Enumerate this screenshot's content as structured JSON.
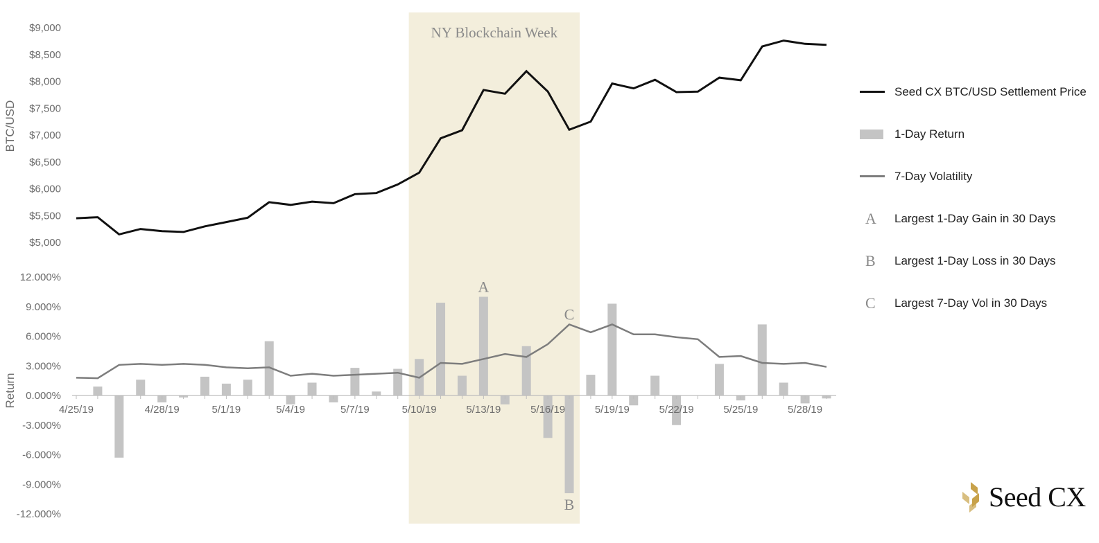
{
  "chart_data": {
    "type": "combo",
    "highlight": {
      "label": "NY Blockchain Week",
      "from_date": "5/10/19",
      "to_date": "5/17/19",
      "color": "#f3eedc"
    },
    "x": [
      "4/25/19",
      "4/25/19",
      "4/26/19",
      "4/27/19",
      "4/28/19",
      "4/29/19",
      "4/30/19",
      "5/1/19",
      "5/2/19",
      "5/3/19",
      "5/4/19",
      "5/5/19",
      "5/6/19",
      "5/7/19",
      "5/8/19",
      "5/9/19",
      "5/10/19",
      "5/11/19",
      "5/12/19",
      "5/13/19",
      "5/14/19",
      "5/15/19",
      "5/16/19",
      "5/17/19",
      "5/18/19",
      "5/19/19",
      "5/20/19",
      "5/21/19",
      "5/22/19",
      "5/23/19",
      "5/24/19",
      "5/25/19",
      "5/26/19",
      "5/27/19",
      "5/28/19",
      "5/29/19"
    ],
    "x_tick_labels": [
      "4/25/19",
      "4/28/19",
      "5/1/19",
      "5/4/19",
      "5/7/19",
      "5/10/19",
      "5/13/19",
      "5/16/19",
      "5/19/19",
      "5/22/19",
      "5/25/19",
      "5/28/19"
    ],
    "top_panel": {
      "ylabel": "BTC/USD",
      "ylim": [
        5000,
        9000
      ],
      "yticks": [
        "$5,000",
        "$5,500",
        "$6,000",
        "$6,500",
        "$7,000",
        "$7,500",
        "$8,000",
        "$8,500",
        "$9,000"
      ],
      "series": [
        {
          "name": "Seed CX BTC/USD Settlement Price",
          "color": "#111111",
          "values": [
            5450,
            5470,
            5150,
            5250,
            5210,
            5195,
            5300,
            5380,
            5460,
            5750,
            5700,
            5760,
            5730,
            5900,
            5920,
            6080,
            6300,
            6940,
            7090,
            7840,
            7770,
            8190,
            7810,
            7100,
            7250,
            7960,
            7870,
            8030,
            7800,
            7810,
            8070,
            8020,
            8650,
            8760,
            8700,
            8680
          ]
        }
      ]
    },
    "bottom_panel": {
      "ylabel": "Return",
      "ylim": [
        -12,
        12
      ],
      "yticks": [
        "-12.000%",
        "-9.000%",
        "-6.000%",
        "-3.000%",
        "0.000%",
        "3.000%",
        "6.000%",
        "9.000%",
        "12.000%"
      ],
      "series": [
        {
          "name": "1-Day Return",
          "type": "bar",
          "color": "#c4c4c4",
          "values": [
            null,
            0.9,
            -6.3,
            1.6,
            -0.7,
            -0.2,
            1.9,
            1.2,
            1.6,
            5.5,
            -0.9,
            1.3,
            -0.7,
            2.8,
            0.4,
            2.7,
            3.7,
            9.4,
            2.0,
            10.0,
            -0.9,
            5.0,
            -4.3,
            -9.9,
            2.1,
            9.3,
            -1.0,
            2.0,
            -3.0,
            0.0,
            3.2,
            -0.5,
            7.2,
            1.3,
            -0.8,
            -0.3
          ]
        },
        {
          "name": "7-Day Volatility",
          "type": "line",
          "color": "#7d7d7d",
          "values": [
            1.8,
            1.75,
            3.1,
            3.2,
            3.1,
            3.2,
            3.1,
            2.85,
            2.75,
            2.85,
            2.0,
            2.2,
            2.0,
            2.1,
            2.2,
            2.3,
            1.8,
            3.3,
            3.2,
            3.7,
            4.2,
            3.9,
            5.2,
            7.2,
            6.4,
            7.2,
            6.2,
            6.2,
            5.9,
            5.7,
            3.9,
            4.0,
            3.3,
            3.2,
            3.3,
            2.9
          ]
        }
      ],
      "annotations": [
        {
          "letter": "A",
          "x": "5/13/19",
          "y": 10.0,
          "position": "above"
        },
        {
          "letter": "B",
          "x": "5/17/19",
          "y": -9.9,
          "position": "below"
        },
        {
          "letter": "C",
          "x": "5/17/19",
          "y": 7.2,
          "position": "above"
        }
      ]
    }
  },
  "legend": [
    {
      "kind": "line",
      "color": "#111111",
      "label": "Seed CX BTC/USD Settlement Price"
    },
    {
      "kind": "bar",
      "color": "#c4c4c4",
      "label": "1-Day Return"
    },
    {
      "kind": "line",
      "color": "#7d7d7d",
      "label": "7-Day Volatility"
    },
    {
      "kind": "letter",
      "symbol": "A",
      "label": "Largest 1-Day Gain in 30 Days"
    },
    {
      "kind": "letter",
      "symbol": "B",
      "label": "Largest 1-Day Loss in 30 Days"
    },
    {
      "kind": "letter",
      "symbol": "C",
      "label": "Largest 7-Day Vol in 30 Days"
    }
  ],
  "logo": {
    "text": "Seed CX",
    "color": "#c8a24a"
  }
}
